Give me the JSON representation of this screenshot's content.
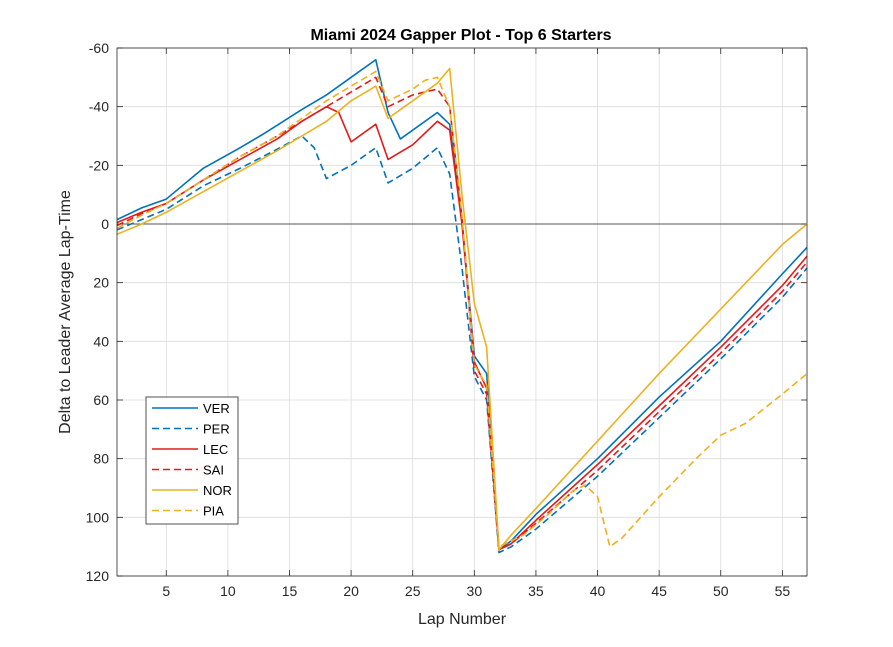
{
  "chart_data": {
    "type": "line",
    "title": "Miami 2024 Gapper Plot - Top 6 Starters",
    "xlabel": "Lap Number",
    "ylabel": "Delta to Leader Average Lap-Time",
    "xlim": [
      1,
      57
    ],
    "ylim": [
      -60,
      120
    ],
    "y_reversed": true,
    "grid": true,
    "legend_position": "bottom-left",
    "x_ticks": [
      5,
      10,
      15,
      20,
      25,
      30,
      35,
      40,
      45,
      50,
      55
    ],
    "y_ticks": [
      -60,
      -40,
      -20,
      0,
      20,
      40,
      60,
      80,
      100,
      120
    ],
    "zero_line": true,
    "series": [
      {
        "name": "VER",
        "color": "#0072BD",
        "dash": "solid",
        "points": [
          [
            1,
            -1.5
          ],
          [
            3,
            -5.5
          ],
          [
            4,
            -7
          ],
          [
            5,
            -8.5
          ],
          [
            8,
            -19
          ],
          [
            11,
            -26
          ],
          [
            13,
            -31
          ],
          [
            16,
            -39
          ],
          [
            18,
            -44
          ],
          [
            20,
            -50
          ],
          [
            22,
            -56
          ],
          [
            23,
            -38
          ],
          [
            24,
            -29
          ],
          [
            27,
            -38
          ],
          [
            28,
            -34
          ],
          [
            29,
            -1
          ],
          [
            30,
            45
          ],
          [
            31,
            51
          ],
          [
            32,
            111
          ],
          [
            33,
            108
          ],
          [
            35,
            99
          ],
          [
            40,
            80
          ],
          [
            45,
            59
          ],
          [
            50,
            40
          ],
          [
            55,
            17
          ],
          [
            57,
            8
          ]
        ]
      },
      {
        "name": "PER",
        "color": "#0072BD",
        "dash": "dashed",
        "points": [
          [
            1,
            2
          ],
          [
            3,
            -1.5
          ],
          [
            5,
            -5
          ],
          [
            8,
            -13
          ],
          [
            11,
            -19
          ],
          [
            14,
            -25.5
          ],
          [
            16,
            -30
          ],
          [
            17,
            -26
          ],
          [
            18,
            -15.5
          ],
          [
            20,
            -20
          ],
          [
            22,
            -26
          ],
          [
            23,
            -14
          ],
          [
            25,
            -19
          ],
          [
            27,
            -26
          ],
          [
            28,
            -17
          ],
          [
            29,
            15
          ],
          [
            30,
            52
          ],
          [
            31,
            60
          ],
          [
            32,
            112
          ],
          [
            33,
            110
          ],
          [
            35,
            104
          ],
          [
            40,
            86
          ],
          [
            45,
            66
          ],
          [
            50,
            46
          ],
          [
            55,
            25
          ],
          [
            57,
            15
          ]
        ]
      },
      {
        "name": "LEC",
        "color": "#E31A1C",
        "dash": "solid",
        "points": [
          [
            1,
            -0.5
          ],
          [
            3,
            -4
          ],
          [
            5,
            -7
          ],
          [
            8,
            -15
          ],
          [
            11,
            -22
          ],
          [
            14,
            -29
          ],
          [
            16,
            -35
          ],
          [
            18,
            -40
          ],
          [
            19,
            -38
          ],
          [
            20,
            -28
          ],
          [
            22,
            -34
          ],
          [
            23,
            -22
          ],
          [
            25,
            -27
          ],
          [
            27,
            -35
          ],
          [
            28,
            -32
          ],
          [
            29,
            0
          ],
          [
            30,
            47
          ],
          [
            31,
            56
          ],
          [
            32,
            111
          ],
          [
            33,
            109
          ],
          [
            35,
            101
          ],
          [
            40,
            82
          ],
          [
            45,
            62
          ],
          [
            50,
            42
          ],
          [
            55,
            21
          ],
          [
            57,
            11
          ]
        ]
      },
      {
        "name": "SAI",
        "color": "#E31A1C",
        "dash": "dashed",
        "points": [
          [
            1,
            0.5
          ],
          [
            3,
            -3.5
          ],
          [
            5,
            -7
          ],
          [
            8,
            -15
          ],
          [
            11,
            -23
          ],
          [
            14,
            -30
          ],
          [
            16,
            -35
          ],
          [
            18,
            -40
          ],
          [
            20,
            -45
          ],
          [
            22,
            -50
          ],
          [
            23,
            -40
          ],
          [
            25,
            -44
          ],
          [
            27,
            -46
          ],
          [
            28,
            -40
          ],
          [
            29,
            -2
          ],
          [
            30,
            50
          ],
          [
            31,
            58
          ],
          [
            32,
            111
          ],
          [
            33,
            109
          ],
          [
            35,
            102
          ],
          [
            40,
            84
          ],
          [
            45,
            64
          ],
          [
            50,
            44
          ],
          [
            55,
            23
          ],
          [
            57,
            13
          ]
        ]
      },
      {
        "name": "NOR",
        "color": "#EDB120",
        "dash": "solid",
        "points": [
          [
            1,
            3.5
          ],
          [
            3,
            0
          ],
          [
            5,
            -4
          ],
          [
            8,
            -11
          ],
          [
            11,
            -18
          ],
          [
            14,
            -25
          ],
          [
            16,
            -30
          ],
          [
            18,
            -35
          ],
          [
            20,
            -42
          ],
          [
            22,
            -47
          ],
          [
            23,
            -36
          ],
          [
            25,
            -42
          ],
          [
            27,
            -48
          ],
          [
            28,
            -53
          ],
          [
            29,
            -10
          ],
          [
            30,
            27
          ],
          [
            31,
            42
          ],
          [
            32,
            111
          ],
          [
            33,
            106
          ],
          [
            35,
            97
          ],
          [
            40,
            74
          ],
          [
            45,
            51
          ],
          [
            50,
            29
          ],
          [
            55,
            7
          ],
          [
            57,
            0
          ]
        ]
      },
      {
        "name": "PIA",
        "color": "#EDB120",
        "dash": "dashed",
        "points": [
          [
            1,
            1.5
          ],
          [
            3,
            -3
          ],
          [
            5,
            -7
          ],
          [
            8,
            -15
          ],
          [
            11,
            -23
          ],
          [
            14,
            -30
          ],
          [
            16,
            -36
          ],
          [
            18,
            -42
          ],
          [
            20,
            -47
          ],
          [
            22,
            -52
          ],
          [
            23,
            -42
          ],
          [
            25,
            -46
          ],
          [
            26,
            -49
          ],
          [
            27,
            -50
          ],
          [
            28,
            -40
          ],
          [
            29,
            -3
          ],
          [
            30,
            48
          ],
          [
            31,
            55
          ],
          [
            32,
            110
          ],
          [
            34,
            106
          ],
          [
            36,
            99
          ],
          [
            38,
            91
          ],
          [
            39,
            89
          ],
          [
            40,
            93
          ],
          [
            41,
            110
          ],
          [
            42,
            107
          ],
          [
            45,
            93
          ],
          [
            48,
            80
          ],
          [
            50,
            72
          ],
          [
            52,
            68
          ],
          [
            55,
            58
          ],
          [
            57,
            51
          ]
        ]
      }
    ]
  }
}
